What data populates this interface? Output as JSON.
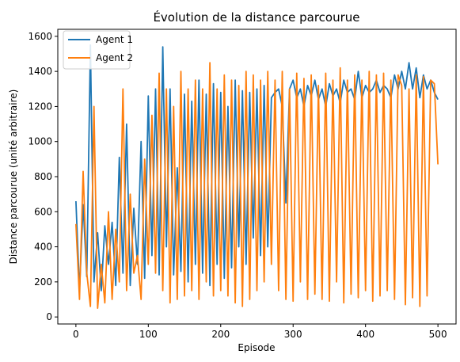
{
  "chart_data": {
    "type": "line",
    "title": "Évolution de la distance parcourue",
    "xlabel": "Episode",
    "ylabel": "Distance parcourue (unité arbitraire)",
    "xlim": [
      -25,
      525
    ],
    "ylim": [
      -40,
      1640
    ],
    "xticks": [
      0,
      100,
      200,
      300,
      400,
      500
    ],
    "yticks": [
      0,
      200,
      400,
      600,
      800,
      1000,
      1200,
      1400,
      1600
    ],
    "legend": "top-left",
    "x": [
      0,
      5,
      10,
      15,
      20,
      25,
      30,
      35,
      40,
      45,
      50,
      55,
      60,
      65,
      70,
      75,
      80,
      85,
      90,
      95,
      100,
      105,
      110,
      115,
      120,
      125,
      130,
      135,
      140,
      145,
      150,
      155,
      160,
      165,
      170,
      175,
      180,
      185,
      190,
      195,
      200,
      205,
      210,
      215,
      220,
      225,
      230,
      235,
      240,
      245,
      250,
      255,
      260,
      265,
      270,
      275,
      280,
      285,
      290,
      295,
      300,
      305,
      310,
      315,
      320,
      325,
      330,
      335,
      340,
      345,
      350,
      355,
      360,
      365,
      370,
      375,
      380,
      385,
      390,
      395,
      400,
      405,
      410,
      415,
      420,
      425,
      430,
      435,
      440,
      445,
      450,
      455,
      460,
      465,
      470,
      475,
      480,
      485,
      490,
      495,
      500
    ],
    "series": [
      {
        "name": "Agent 1",
        "color": "#1f77b4",
        "values": [
          660,
          150,
          640,
          230,
          1550,
          200,
          480,
          150,
          520,
          300,
          540,
          180,
          910,
          250,
          1100,
          180,
          620,
          300,
          1000,
          220,
          1260,
          350,
          1300,
          240,
          1540,
          400,
          1300,
          240,
          850,
          260,
          1270,
          200,
          1230,
          300,
          1350,
          250,
          1270,
          180,
          1330,
          300,
          1280,
          220,
          1200,
          280,
          1350,
          400,
          1290,
          300,
          1280,
          450,
          1300,
          350,
          1320,
          400,
          1250,
          1280,
          1300,
          1200,
          650,
          1300,
          1350,
          1250,
          1300,
          1200,
          1320,
          1260,
          1350,
          1240,
          1300,
          1200,
          1330,
          1260,
          1300,
          1220,
          1350,
          1280,
          1300,
          1240,
          1400,
          1250,
          1320,
          1280,
          1300,
          1350,
          1280,
          1320,
          1300,
          1250,
          1380,
          1300,
          1400,
          1300,
          1450,
          1300,
          1420,
          1250,
          1380,
          1300,
          1350,
          1280,
          1240
        ]
      },
      {
        "name": "Agent 2",
        "color": "#ff7f0e",
        "values": [
          530,
          100,
          830,
          250,
          60,
          1200,
          50,
          300,
          80,
          600,
          100,
          500,
          200,
          1300,
          150,
          700,
          250,
          350,
          100,
          900,
          300,
          1150,
          250,
          1390,
          150,
          1300,
          80,
          1200,
          100,
          1400,
          120,
          1300,
          150,
          1350,
          100,
          1300,
          200,
          1450,
          120,
          1300,
          150,
          1380,
          120,
          1350,
          80,
          1320,
          60,
          1400,
          100,
          1380,
          150,
          1350,
          200,
          1400,
          300,
          1350,
          150,
          1400,
          100,
          1300,
          90,
          1390,
          200,
          1360,
          100,
          1380,
          130,
          1320,
          100,
          1390,
          90,
          1350,
          200,
          1420,
          80,
          1350,
          130,
          1380,
          110,
          1350,
          150,
          1400,
          90,
          1380,
          120,
          1390,
          150,
          1350,
          100,
          1380,
          1320,
          70,
          1300,
          110,
          1380,
          60,
          1370,
          120,
          1350,
          1330,
          870
        ]
      }
    ]
  }
}
